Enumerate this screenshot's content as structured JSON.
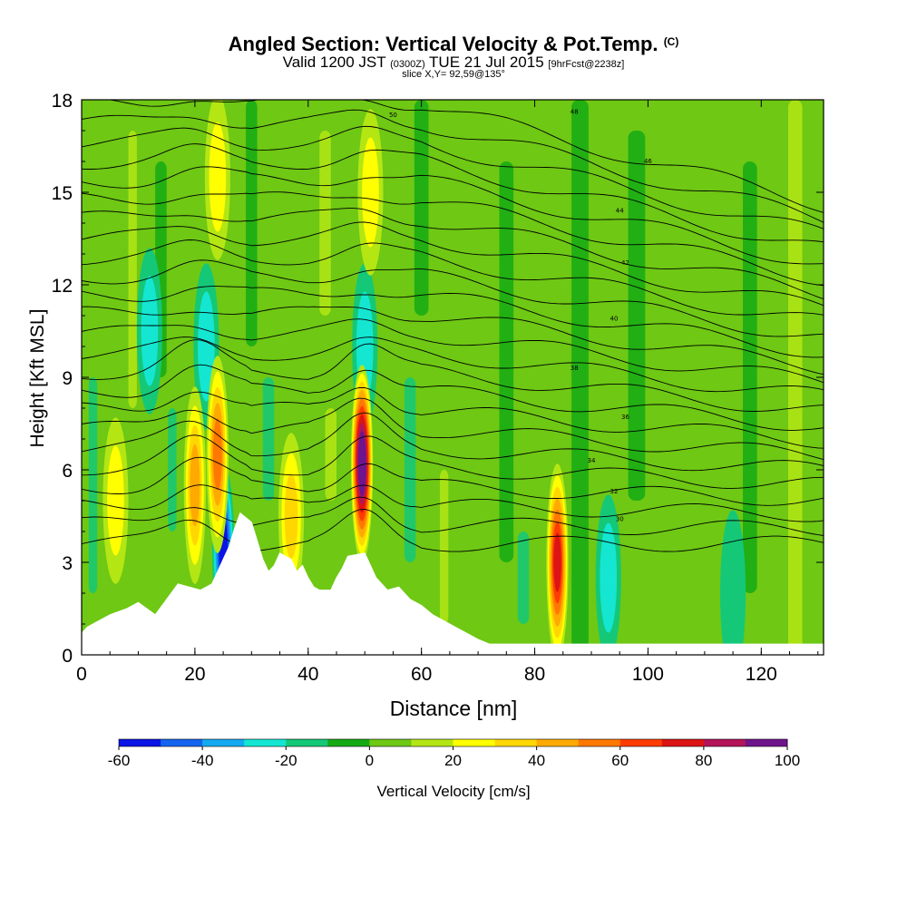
{
  "title": {
    "main": "Angled Section: Vertical Velocity & Pot.Temp.",
    "copyright": "(C)",
    "valid_prefix": "Valid 1200 JST",
    "valid_z": "(0300Z)",
    "valid_date": "TUE 21 Jul 2015",
    "forecast": "[9hrFcst@2238z]",
    "slice": "slice X,Y= 92,59@135°"
  },
  "chart_data": {
    "type": "heatmap",
    "xlabel": "Distance [nm]",
    "ylabel": "Height [Kft MSL]",
    "xlim": [
      0,
      131
    ],
    "ylim": [
      0,
      18
    ],
    "x_ticks": [
      "0",
      "20",
      "40",
      "60",
      "80",
      "100",
      "120"
    ],
    "y_ticks": [
      "0",
      "3",
      "6",
      "9",
      "12",
      "15",
      "18"
    ],
    "colorbar": {
      "label": "Vertical Velocity [cm/s]",
      "ticks": [
        "-60",
        "-40",
        "-20",
        "0",
        "20",
        "40",
        "60",
        "80",
        "100"
      ],
      "levels": [
        -60,
        -50,
        -40,
        -30,
        -20,
        -10,
        0,
        10,
        20,
        30,
        40,
        50,
        60,
        70,
        80,
        90,
        100
      ],
      "colors": [
        "#0a14e6",
        "#1464f0",
        "#14aaf0",
        "#14e6d2",
        "#14c878",
        "#14aa14",
        "#6ec814",
        "#b4e614",
        "#ffff00",
        "#ffd700",
        "#ffaa00",
        "#ff7800",
        "#ff3c00",
        "#dc1414",
        "#b4145a",
        "#6e148c"
      ]
    },
    "terrain_kft": [
      [
        0,
        0.7
      ],
      [
        1,
        0.9
      ],
      [
        3,
        1.1
      ],
      [
        5,
        1.3
      ],
      [
        8,
        1.5
      ],
      [
        10,
        1.7
      ],
      [
        13,
        1.3
      ],
      [
        15,
        1.8
      ],
      [
        17,
        2.3
      ],
      [
        21,
        2.1
      ],
      [
        23,
        2.3
      ],
      [
        24,
        2.7
      ],
      [
        25,
        3.1
      ],
      [
        26,
        3.5
      ],
      [
        27,
        4.1
      ],
      [
        28,
        4.6
      ],
      [
        30,
        4.3
      ],
      [
        31,
        3.7
      ],
      [
        32,
        3.1
      ],
      [
        33,
        2.7
      ],
      [
        34,
        2.9
      ],
      [
        35,
        3.3
      ],
      [
        37,
        3.1
      ],
      [
        38,
        2.7
      ],
      [
        39,
        2.9
      ],
      [
        40,
        2.5
      ],
      [
        41,
        2.2
      ],
      [
        42,
        2.1
      ],
      [
        44,
        2.1
      ],
      [
        45,
        2.5
      ],
      [
        46,
        2.8
      ],
      [
        47,
        3.2
      ],
      [
        50,
        3.3
      ],
      [
        51,
        2.9
      ],
      [
        52,
        2.5
      ],
      [
        54,
        2.1
      ],
      [
        56,
        2.2
      ],
      [
        58,
        1.8
      ],
      [
        60,
        1.6
      ],
      [
        62,
        1.3
      ],
      [
        64,
        1.1
      ],
      [
        66,
        0.9
      ],
      [
        68,
        0.7
      ],
      [
        70,
        0.5
      ],
      [
        72,
        0.35
      ],
      [
        131,
        0.35
      ]
    ],
    "updraft_cores": [
      {
        "x": 6,
        "z": 5,
        "w": 22
      },
      {
        "x": 20,
        "z": 5.5,
        "w": 45
      },
      {
        "x": 24,
        "z": 6.5,
        "w": 55
      },
      {
        "x": 37,
        "z": 4.5,
        "w": 30
      },
      {
        "x": 49.5,
        "z": 6.2,
        "w": 100
      },
      {
        "x": 84,
        "z": 3,
        "w": 70
      },
      {
        "x": 51,
        "z": 15,
        "w": 22
      },
      {
        "x": 24,
        "z": 15.5,
        "w": 20
      }
    ],
    "downdraft_cores": [
      {
        "x": 25,
        "z": 3.5,
        "w": -50
      },
      {
        "x": 22,
        "z": 10,
        "w": -25
      },
      {
        "x": 50,
        "z": 10,
        "w": -25
      },
      {
        "x": 12,
        "z": 10.5,
        "w": -20
      },
      {
        "x": 93,
        "z": 2.5,
        "w": -20
      },
      {
        "x": 115,
        "z": 2,
        "w": -18
      }
    ],
    "theta_label_values": [
      "30",
      "32",
      "34",
      "36",
      "38",
      "40",
      "42",
      "44",
      "46",
      "48",
      "50"
    ]
  }
}
